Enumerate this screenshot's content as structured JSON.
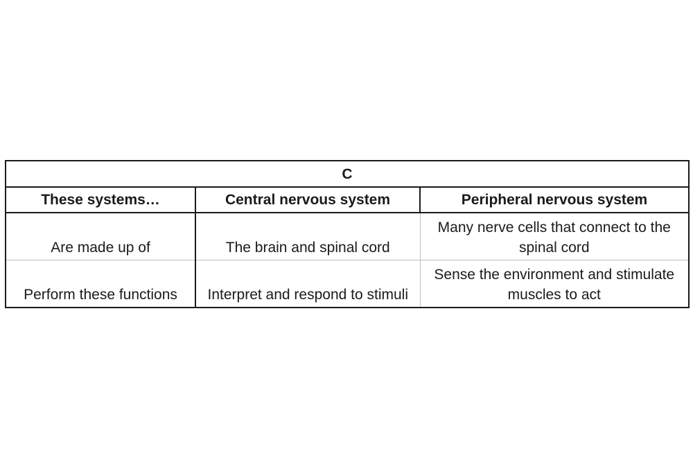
{
  "table": {
    "title": "C",
    "headers": [
      "These systems…",
      "Central nervous system",
      "Peripheral nervous system"
    ],
    "rows": [
      [
        "Are made up of",
        "The brain and spinal cord",
        "Many nerve cells that connect to the spinal cord"
      ],
      [
        "Perform these functions",
        "Interpret and respond to stimuli",
        "Sense the environment and stimulate muscles to act"
      ]
    ]
  },
  "colors": {
    "border": "#1a1a1a",
    "inner_grid": "#bdbdbd",
    "text": "#1a1a1a",
    "background": "#ffffff"
  }
}
